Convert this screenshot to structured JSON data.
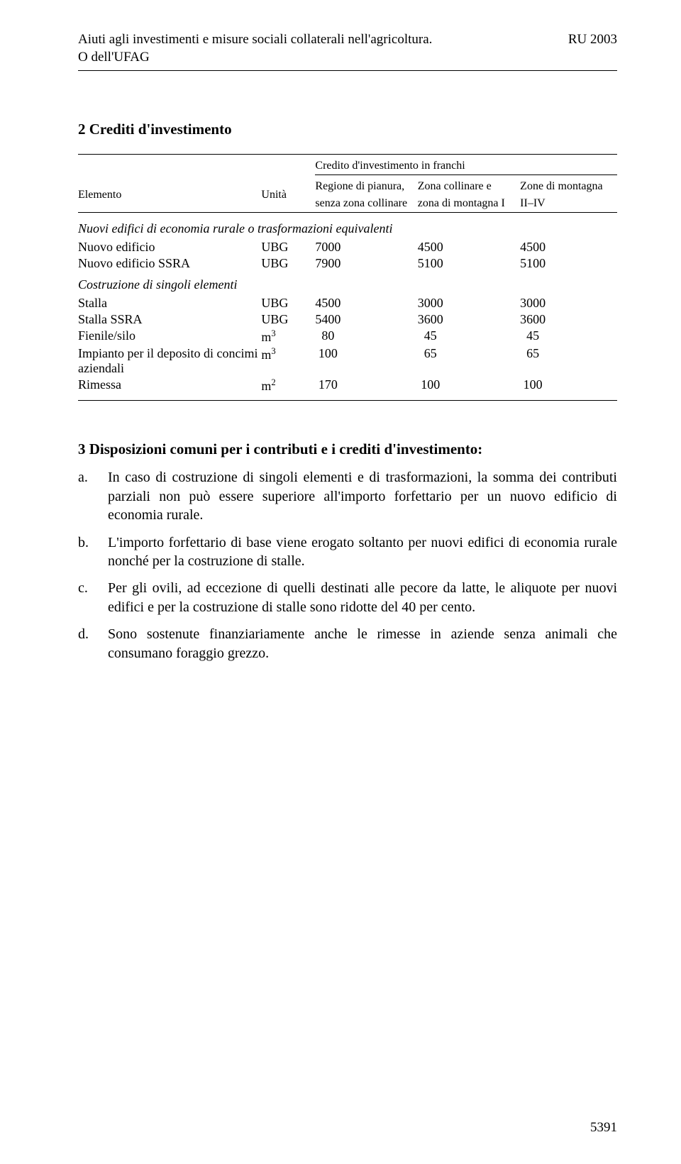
{
  "header": {
    "title_line1": "Aiuti agli investimenti e misure sociali collaterali nell'agricoltura.",
    "title_line2": "O dell'UFAG",
    "right": "RU 2003"
  },
  "section_title": "2 Crediti d'investimento",
  "table": {
    "super_header": "Credito d'investimento in franchi",
    "col_elem": "Elemento",
    "col_unit": "Unità",
    "col_a_l1": "Regione di pianura,",
    "col_a_l2": "senza zona collinare",
    "col_b_l1": "Zona collinare e",
    "col_b_l2": "zona di montagna I",
    "col_c_l1": "Zone di montagna",
    "col_c_l2": "II–IV",
    "group1": "Nuovi edifici di economia rurale o trasformazioni equivalenti",
    "g1_rows": [
      {
        "label": "Nuovo edificio",
        "unit": "UBG",
        "a": "7000",
        "b": "4500",
        "c": "4500"
      },
      {
        "label": "Nuovo edificio SSRA",
        "unit": "UBG",
        "a": "7900",
        "b": "5100",
        "c": "5100"
      }
    ],
    "group2": "Costruzione di singoli elementi",
    "g2_rows": [
      {
        "label": "Stalla",
        "unit": "UBG",
        "a": "4500",
        "b": "3000",
        "c": "3000"
      },
      {
        "label": "Stalla SSRA",
        "unit": "UBG",
        "a": "5400",
        "b": "3600",
        "c": "3600"
      },
      {
        "label": "Fienile/silo",
        "unit": "m",
        "unit_sup": "3",
        "a": "  80",
        "b": "  45",
        "c": "  45"
      },
      {
        "label": "Impianto per il deposito di concimi aziendali",
        "unit": "m",
        "unit_sup": "3",
        "a": " 100",
        "b": "  65",
        "c": "  65"
      },
      {
        "label": "Rimessa",
        "unit": "m",
        "unit_sup": "2",
        "a": " 170",
        "b": " 100",
        "c": " 100"
      }
    ]
  },
  "list": {
    "title": "3 Disposizioni comuni per i contributi e i crediti d'investimento:",
    "items": [
      {
        "marker": "a.",
        "text": "In caso di costruzione di singoli elementi e di trasformazioni, la somma dei contributi parziali non può essere superiore all'importo forfettario per un nuovo edificio di economia rurale."
      },
      {
        "marker": "b.",
        "text": "L'importo forfettario di base viene erogato soltanto per nuovi edifici di economia rurale nonché per la costruzione di stalle."
      },
      {
        "marker": "c.",
        "text": "Per gli ovili, ad eccezione di quelli destinati alle pecore da latte, le aliquote per nuovi edifici e per la costruzione di stalle sono ridotte del 40 per cento."
      },
      {
        "marker": "d.",
        "text": "Sono sostenute finanziariamente anche le rimesse in aziende senza animali che consumano foraggio grezzo."
      }
    ]
  },
  "page_number": "5391"
}
